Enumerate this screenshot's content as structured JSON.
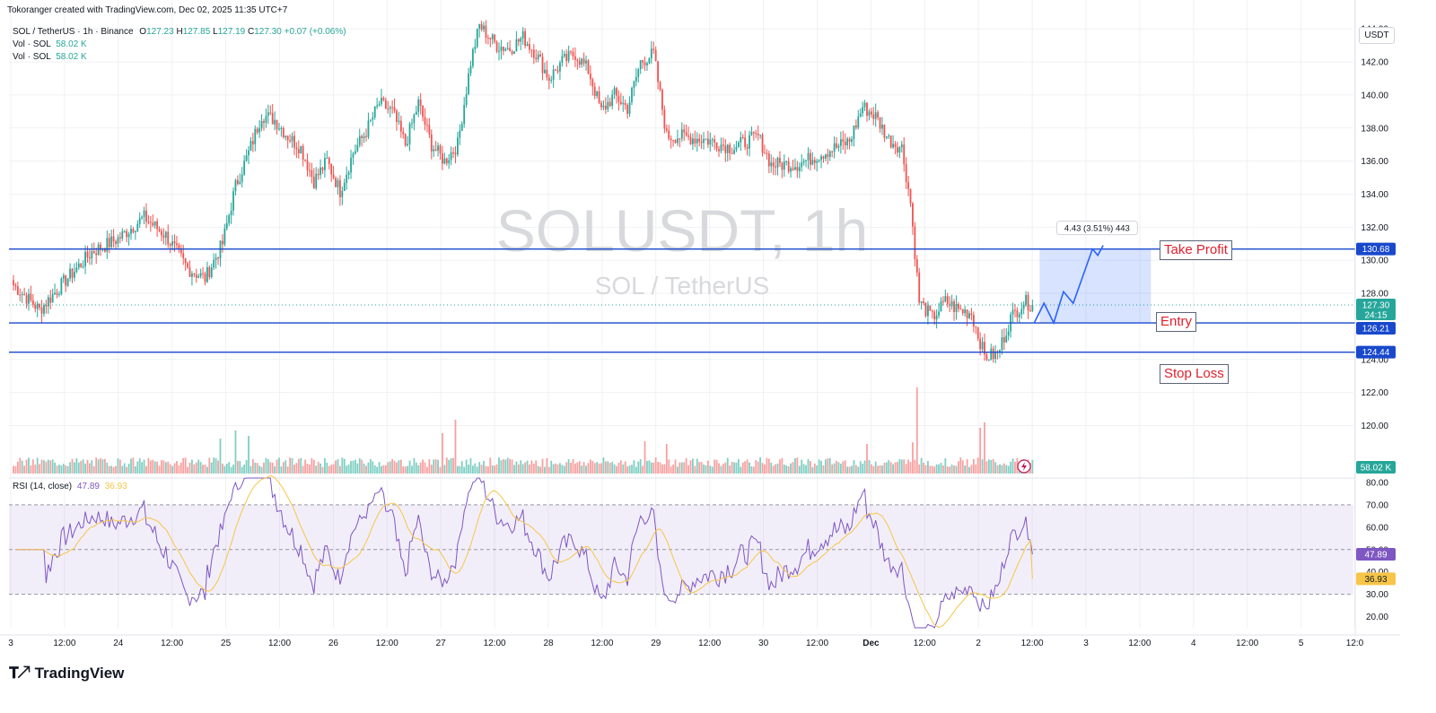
{
  "attribution": "Tokoranger created with TradingView.com, Dec 02, 2025 11:35 UTC+7",
  "symbol": {
    "title": "SOL / TetherUS · 1h · Binance",
    "o_label": "O",
    "o": "127.23",
    "h_label": "H",
    "h": "127.85",
    "l_label": "L",
    "l": "127.19",
    "c_label": "C",
    "c": "127.30",
    "change": "+0.07 (+0.06%)"
  },
  "volume_legend": [
    {
      "label": "Vol · SOL",
      "value": "58.02 K"
    },
    {
      "label": "Vol · SOL",
      "value": "58.02 K"
    }
  ],
  "watermark": {
    "ticker": "SOLUSDT, 1h",
    "name": "SOL / TetherUS"
  },
  "currency": "USDT",
  "price_axis": {
    "min": 118.5,
    "max": 145.0,
    "ticks": [
      "144.00",
      "142.00",
      "140.00",
      "138.00",
      "136.00",
      "134.00",
      "132.00",
      "130.00",
      "128.00",
      "124.00",
      "122.00",
      "120.00"
    ]
  },
  "levels": {
    "take_profit": {
      "label": "Take Profit",
      "price": 130.68,
      "badge": "130.68"
    },
    "entry": {
      "label": "Entry",
      "price": 126.21,
      "badge": "126.21"
    },
    "stop_loss": {
      "label": "Stop Loss",
      "price": 124.44,
      "badge": "124.44"
    },
    "last_price": {
      "price": 127.3,
      "badge": "127.30",
      "countdown": "24:15"
    }
  },
  "projection_box": {
    "label": "4.43 (3.51%) 443"
  },
  "volume_badge": "58.02 K",
  "rsi": {
    "label": "RSI (14, close)",
    "value": "47.89",
    "ma": "36.93",
    "ticks": [
      "80.00",
      "70.00",
      "60.00",
      "50.00",
      "40.00",
      "30.00",
      "20.00"
    ],
    "upper": 70,
    "lower": 30,
    "middle": 50,
    "value_num": 47.89,
    "ma_num": 36.93
  },
  "time_axis": [
    "3",
    "12:00",
    "24",
    "12:00",
    "25",
    "12:00",
    "26",
    "12:00",
    "27",
    "12:00",
    "28",
    "12:00",
    "29",
    "12:00",
    "30",
    "12:00",
    "Dec",
    "12:00",
    "2",
    "12:00",
    "3",
    "12:00",
    "4",
    "12:00",
    "5",
    "12:0"
  ],
  "brand": "TradingView",
  "colors": {
    "up": "#26a69a",
    "down": "#ef5350",
    "level": "#1848cc",
    "rsi": "#7e57c2",
    "rsi_ma": "#f7c548",
    "projection": "#2962ff"
  },
  "chart_data": {
    "type": "candlestick",
    "title": "SOL / TetherUS · 1h · Binance",
    "xlabel": "",
    "ylabel": "",
    "ylim": [
      118.5,
      145.0
    ],
    "anchors": [
      {
        "t": 0,
        "p": 128.5
      },
      {
        "t": 12,
        "p": 127.0
      },
      {
        "t": 24,
        "p": 128.8
      },
      {
        "t": 36,
        "p": 130.5
      },
      {
        "t": 48,
        "p": 131.3
      },
      {
        "t": 60,
        "p": 132.6
      },
      {
        "t": 70,
        "p": 131.5
      },
      {
        "t": 80,
        "p": 129.5
      },
      {
        "t": 88,
        "p": 128.9
      },
      {
        "t": 96,
        "p": 131.0
      },
      {
        "t": 102,
        "p": 134.5
      },
      {
        "t": 108,
        "p": 136.5
      },
      {
        "t": 114,
        "p": 138.8
      },
      {
        "t": 120,
        "p": 138.5
      },
      {
        "t": 126,
        "p": 137.5
      },
      {
        "t": 132,
        "p": 136.8
      },
      {
        "t": 138,
        "p": 134.8
      },
      {
        "t": 144,
        "p": 136.0
      },
      {
        "t": 150,
        "p": 134.2
      },
      {
        "t": 156,
        "p": 136.5
      },
      {
        "t": 162,
        "p": 137.8
      },
      {
        "t": 168,
        "p": 139.5
      },
      {
        "t": 174,
        "p": 139.0
      },
      {
        "t": 180,
        "p": 137.0
      },
      {
        "t": 186,
        "p": 139.5
      },
      {
        "t": 192,
        "p": 137.0
      },
      {
        "t": 198,
        "p": 136.0
      },
      {
        "t": 204,
        "p": 137.0
      },
      {
        "t": 210,
        "p": 142.0
      },
      {
        "t": 214,
        "p": 144.2
      },
      {
        "t": 222,
        "p": 143.0
      },
      {
        "t": 228,
        "p": 142.8
      },
      {
        "t": 234,
        "p": 143.5
      },
      {
        "t": 240,
        "p": 142.5
      },
      {
        "t": 246,
        "p": 141.0
      },
      {
        "t": 252,
        "p": 142.0
      },
      {
        "t": 258,
        "p": 142.5
      },
      {
        "t": 264,
        "p": 141.5
      },
      {
        "t": 270,
        "p": 139.0
      },
      {
        "t": 276,
        "p": 140.0
      },
      {
        "t": 282,
        "p": 139.2
      },
      {
        "t": 288,
        "p": 142.0
      },
      {
        "t": 294,
        "p": 142.5
      },
      {
        "t": 300,
        "p": 137.5
      },
      {
        "t": 306,
        "p": 137.5
      },
      {
        "t": 318,
        "p": 137.3
      },
      {
        "t": 330,
        "p": 136.8
      },
      {
        "t": 342,
        "p": 137.5
      },
      {
        "t": 348,
        "p": 135.8
      },
      {
        "t": 360,
        "p": 135.8
      },
      {
        "t": 372,
        "p": 136.5
      },
      {
        "t": 384,
        "p": 137.2
      },
      {
        "t": 390,
        "p": 139.3
      },
      {
        "t": 396,
        "p": 138.7
      },
      {
        "t": 402,
        "p": 137.3
      },
      {
        "t": 408,
        "p": 136.8
      },
      {
        "t": 412,
        "p": 133.5
      },
      {
        "t": 416,
        "p": 127.5
      },
      {
        "t": 422,
        "p": 126.5
      },
      {
        "t": 428,
        "p": 127.5
      },
      {
        "t": 434,
        "p": 127.0
      },
      {
        "t": 440,
        "p": 126.8
      },
      {
        "t": 446,
        "p": 124.2
      },
      {
        "t": 452,
        "p": 124.3
      },
      {
        "t": 458,
        "p": 126.5
      },
      {
        "t": 464,
        "p": 127.5
      },
      {
        "t": 468,
        "p": 127.3
      }
    ],
    "volume_spikes": [
      {
        "t": 95,
        "v": 0.65
      },
      {
        "t": 102,
        "v": 0.8
      },
      {
        "t": 108,
        "v": 0.7
      },
      {
        "t": 197,
        "v": 0.75
      },
      {
        "t": 203,
        "v": 1.0
      },
      {
        "t": 290,
        "v": 0.6
      },
      {
        "t": 300,
        "v": 0.55
      },
      {
        "t": 392,
        "v": 0.55
      },
      {
        "t": 413,
        "v": 0.58
      },
      {
        "t": 415,
        "v": 1.6
      },
      {
        "t": 444,
        "v": 0.85
      },
      {
        "t": 446,
        "v": 0.95
      }
    ],
    "projection_path": [
      126.21,
      127.4,
      126.21,
      128.1,
      127.4,
      130.68,
      130.3,
      130.9
    ]
  }
}
